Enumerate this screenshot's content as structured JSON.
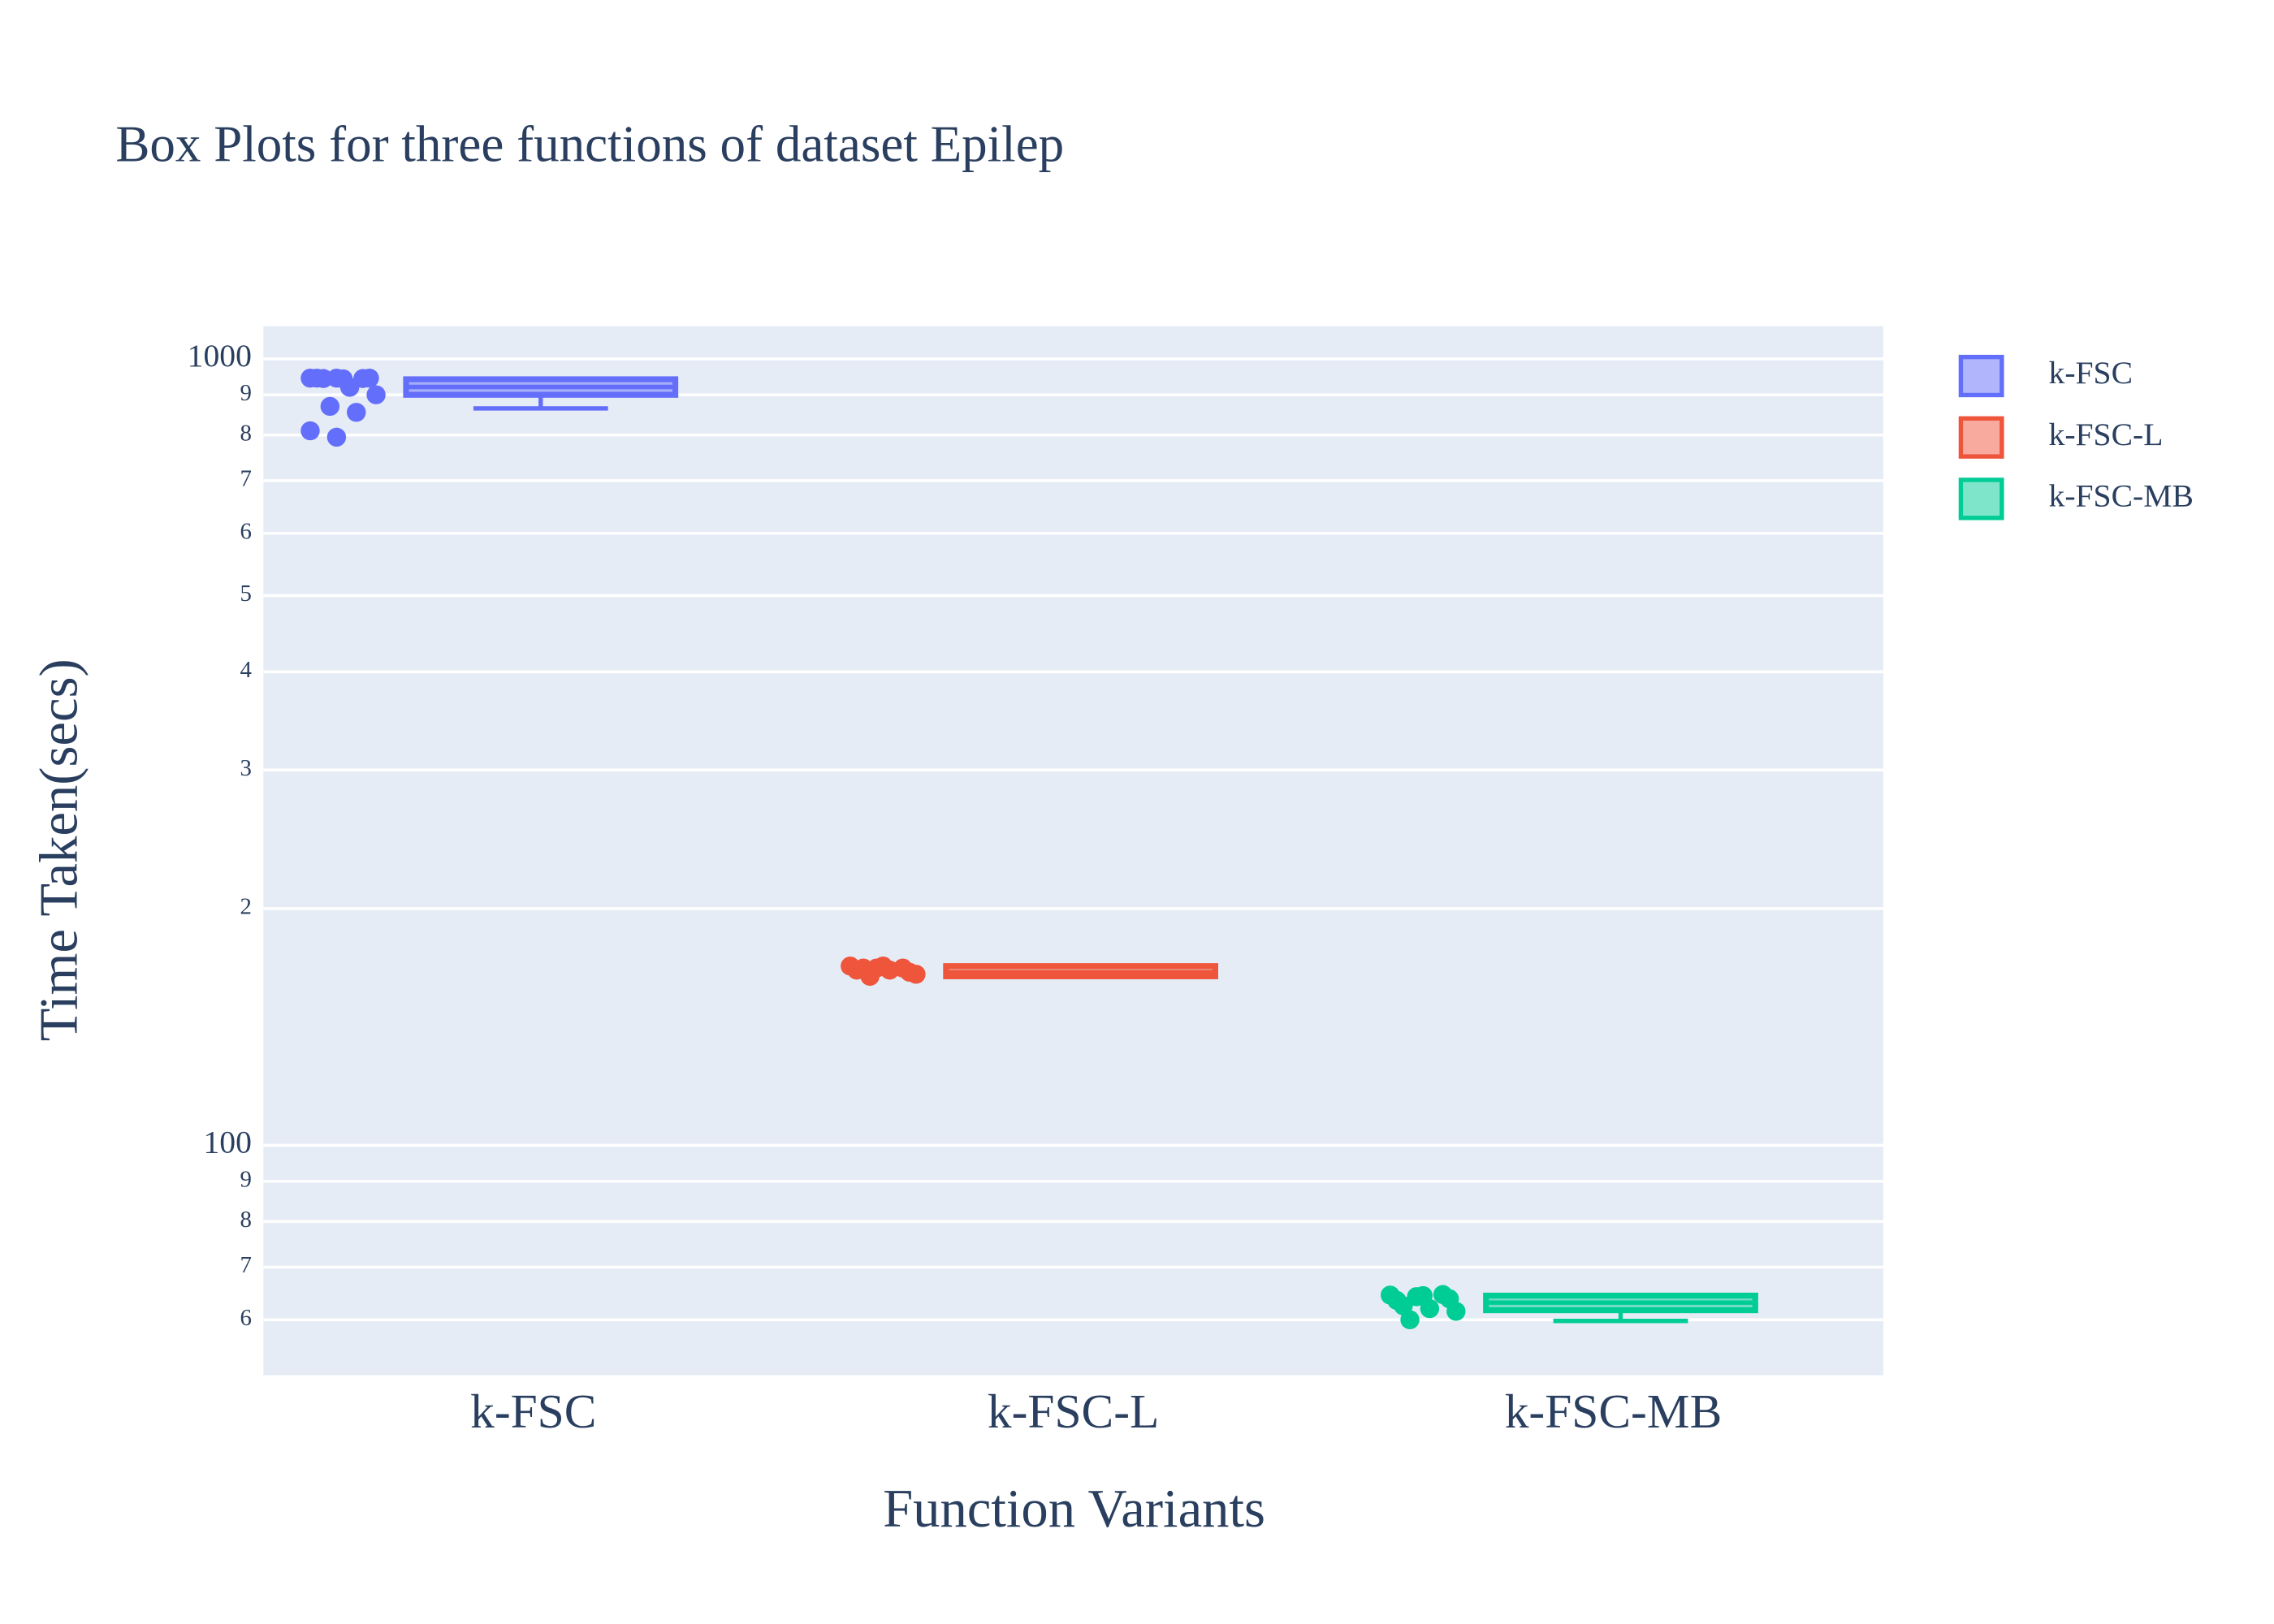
{
  "chart_data": {
    "type": "box",
    "title": "Box Plots for three functions of dataset Epilep",
    "x_label": "Function Variants",
    "y_label": "Time Taken(secs)",
    "categories": [
      "k-FSC",
      "k-FSC-L",
      "k-FSC-MB"
    ],
    "log_y": true,
    "grid": true,
    "legend": "top-right",
    "ylim": [
      51,
      1100
    ],
    "yticks": [
      {
        "value": 60,
        "label": "6"
      },
      {
        "value": 70,
        "label": "7"
      },
      {
        "value": 80,
        "label": "8"
      },
      {
        "value": 90,
        "label": "9"
      },
      100,
      {
        "value": 200,
        "label": "2"
      },
      {
        "value": 300,
        "label": "3"
      },
      {
        "value": 400,
        "label": "4"
      },
      {
        "value": 500,
        "label": "5"
      },
      {
        "value": 600,
        "label": "6"
      },
      {
        "value": 700,
        "label": "7"
      },
      {
        "value": 800,
        "label": "8"
      },
      {
        "value": 900,
        "label": "9"
      },
      1000
    ],
    "series": [
      {
        "name": "k-FSC",
        "color": "#636efa",
        "q1": 900,
        "median": 921,
        "q3": 942,
        "lowerfence": 865,
        "upperfence": 942,
        "values": [
          945,
          945,
          944,
          945,
          943,
          945,
          944,
          920,
          900,
          870,
          855,
          810,
          795
        ]
      },
      {
        "name": "k-FSC-L",
        "color": "#ef553b",
        "q1": 164,
        "median": 166,
        "q3": 169,
        "lowerfence": 164,
        "upperfence": 169,
        "values": [
          169,
          168,
          168,
          167,
          169,
          166,
          168,
          167,
          165,
          164
        ]
      },
      {
        "name": "k-FSC-MB",
        "color": "#00cc96",
        "q1": 61.7,
        "median": 63.1,
        "q3": 64.4,
        "lowerfence": 59.8,
        "upperfence": 64.4,
        "values": [
          64.5,
          64.2,
          64.6,
          63.5,
          64.4,
          63.8,
          62.5,
          62,
          61.5,
          60
        ]
      }
    ]
  }
}
